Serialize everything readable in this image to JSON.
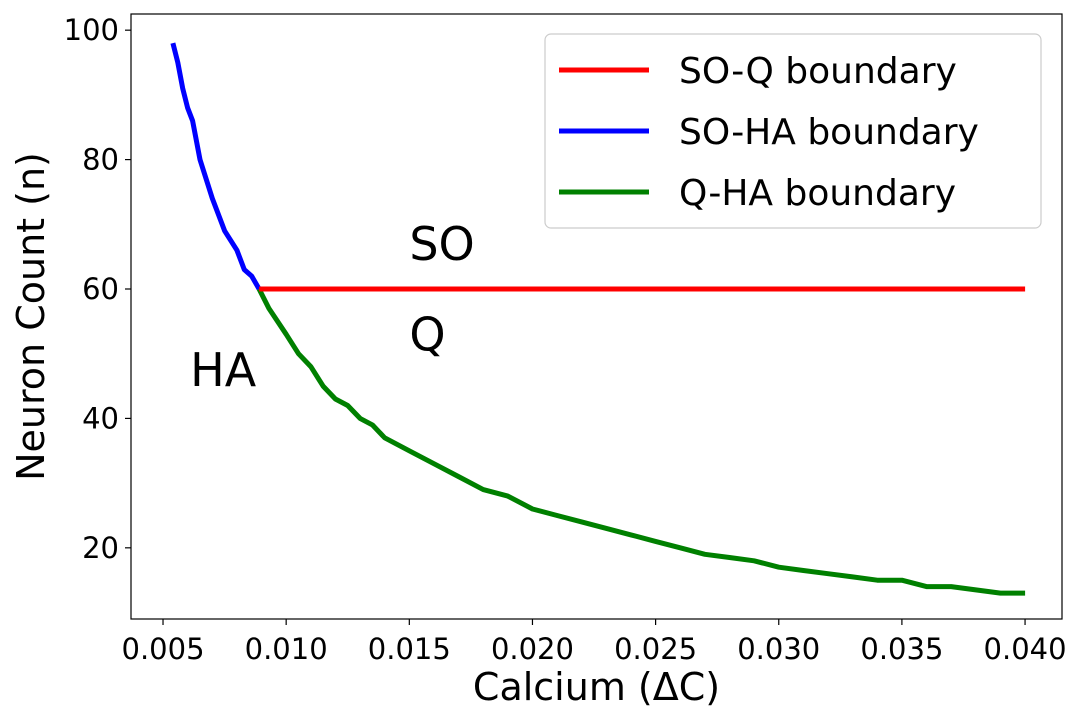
{
  "chart_data": {
    "type": "line",
    "title": "",
    "xlabel": "Calcium (ΔC)",
    "ylabel": "Neuron Count (n)",
    "xlim": [
      0.0037,
      0.0415
    ],
    "ylim": [
      9,
      102.5
    ],
    "xticks": [
      0.005,
      0.01,
      0.015,
      0.02,
      0.025,
      0.03,
      0.035,
      0.04
    ],
    "xtick_labels": [
      "0.005",
      "0.010",
      "0.015",
      "0.020",
      "0.025",
      "0.030",
      "0.035",
      "0.040"
    ],
    "yticks": [
      20,
      40,
      60,
      80,
      100
    ],
    "ytick_labels": [
      "20",
      "40",
      "60",
      "80",
      "100"
    ],
    "grid": false,
    "legend_position": "top-right",
    "series": [
      {
        "name": "SO-Q boundary",
        "color": "#ff0000",
        "x": [
          0.0089,
          0.04
        ],
        "y": [
          60,
          60
        ]
      },
      {
        "name": "SO-HA boundary",
        "color": "#0000ff",
        "x": [
          0.0054,
          0.0056,
          0.0058,
          0.006,
          0.0062,
          0.0065,
          0.007,
          0.0075,
          0.008,
          0.0083,
          0.0086,
          0.0089
        ],
        "y": [
          98,
          95,
          91,
          88,
          86,
          80,
          74,
          69,
          66,
          63,
          62,
          60
        ]
      },
      {
        "name": "Q-HA boundary",
        "color": "#008000",
        "x": [
          0.0089,
          0.0093,
          0.01,
          0.0105,
          0.011,
          0.0115,
          0.012,
          0.0125,
          0.013,
          0.0135,
          0.014,
          0.0145,
          0.015,
          0.016,
          0.017,
          0.018,
          0.019,
          0.02,
          0.021,
          0.022,
          0.023,
          0.024,
          0.025,
          0.026,
          0.027,
          0.028,
          0.029,
          0.03,
          0.031,
          0.032,
          0.033,
          0.034,
          0.035,
          0.036,
          0.037,
          0.038,
          0.039,
          0.04
        ],
        "y": [
          60,
          57,
          53,
          50,
          48,
          45,
          43,
          42,
          40,
          39,
          37,
          36,
          35,
          33,
          31,
          29,
          28,
          26,
          25,
          24,
          23,
          22,
          21,
          20,
          19,
          18.5,
          18,
          17,
          16.5,
          16,
          15.5,
          15,
          15,
          14,
          14,
          13.5,
          13,
          13
        ]
      }
    ],
    "annotations": [
      {
        "text": "SO",
        "x": 0.015,
        "y": 64.5
      },
      {
        "text": "Q",
        "x": 0.015,
        "y": 50.5
      },
      {
        "text": "HA",
        "x": 0.0061,
        "y": 45
      }
    ]
  }
}
